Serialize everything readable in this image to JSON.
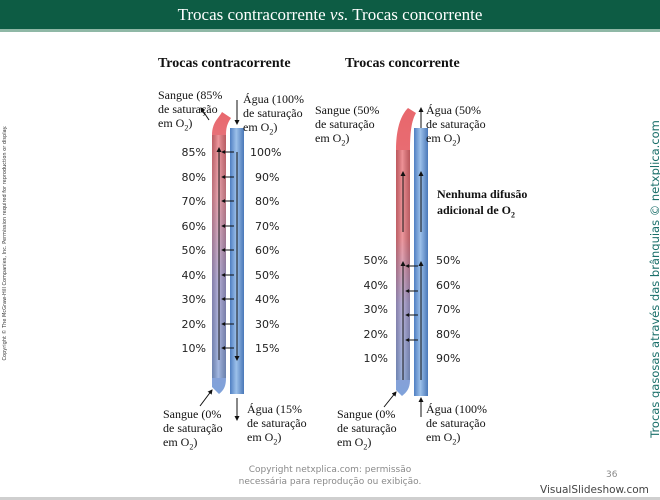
{
  "header": {
    "title_left": "Trocas contracorrente ",
    "title_vs": "vs.",
    "title_right": " Trocas concorrente"
  },
  "sidebar": {
    "copyright": "Copyright © The McGraw-Hill Companies, Inc. Permission required for reproduction or display.",
    "brand": "Trocas gasosas através das brânquias © netxplica.com"
  },
  "left_panel": {
    "title": "Trocas contracorrente",
    "blood_in": {
      "line1": "Sangue (85%",
      "line2": "de saturação",
      "line3": "em O"
    },
    "water_in": {
      "line1": "Água (100%",
      "line2": "de saturação",
      "line3": "em O"
    },
    "blood_out": {
      "line1": "Sangue (0%",
      "line2": "de saturação",
      "line3": "em O"
    },
    "water_out": {
      "line1": "Água (15%",
      "line2": "de saturação",
      "line3": "em O"
    },
    "blood_values": [
      "85%",
      "80%",
      "70%",
      "60%",
      "50%",
      "40%",
      "30%",
      "20%",
      "10%"
    ],
    "water_values": [
      "100%",
      "90%",
      "80%",
      "70%",
      "60%",
      "50%",
      "40%",
      "30%",
      "15%"
    ]
  },
  "right_panel": {
    "title": "Trocas concorrente",
    "blood_in": {
      "line1": "Sangue (50%",
      "line2": "de saturação",
      "line3": "em O"
    },
    "water_in": {
      "line1": "Água (50%",
      "line2": "de saturação",
      "line3": "em O"
    },
    "blood_out": {
      "line1": "Sangue (0%",
      "line2": "de saturação",
      "line3": "em O"
    },
    "water_out": {
      "line1": "Água (100%",
      "line2": "de saturação",
      "line3": "em O"
    },
    "note": {
      "line1": "Nenhuma difusão",
      "line2": "adicional de O"
    },
    "blood_values": [
      "50%",
      "40%",
      "30%",
      "20%",
      "10%"
    ],
    "water_values": [
      "50%",
      "60%",
      "70%",
      "80%",
      "90%"
    ]
  },
  "sub2": "2",
  "paren": ")",
  "footer": {
    "line1": "Copyright netxplica.com: permissão",
    "line2": "necessária para reprodução ou exibição."
  },
  "page_number": "36",
  "brand": "VisualSlideshow.com",
  "colors": {
    "header": "#0d5c44",
    "blood_oxygenated": "#e8676c",
    "blood_deoxygenated": "#7fa2da",
    "water": "#5f8fce",
    "brand_text": "#1a6f6a"
  }
}
